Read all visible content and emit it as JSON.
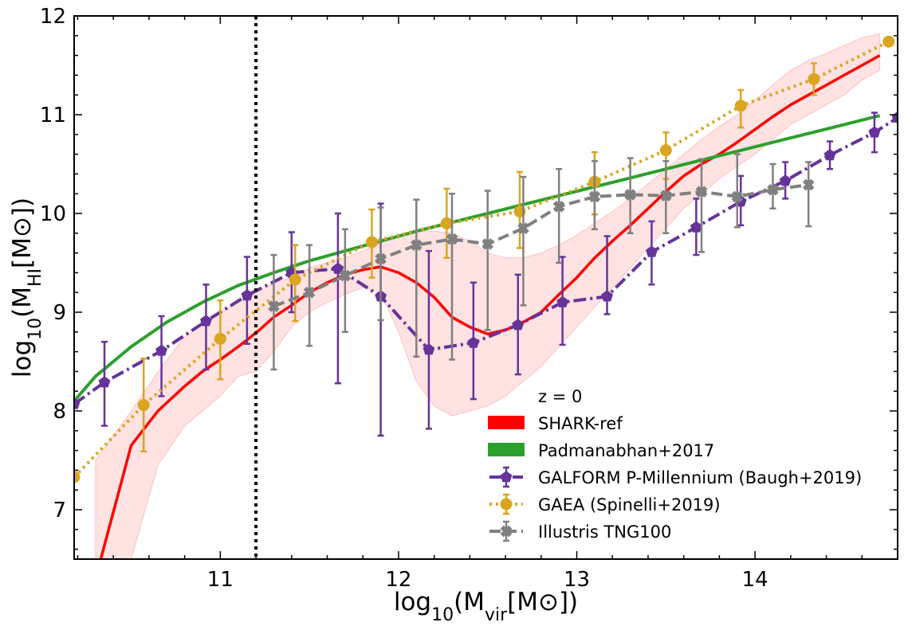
{
  "chart_data": {
    "type": "line",
    "xlabel": {
      "pre": "log",
      "sub": "10",
      "mid": "(M",
      "sub2": "vir",
      "post": "[M",
      "sun": "⊙",
      "end": "])"
    },
    "ylabel": {
      "pre": "log",
      "sub": "10",
      "mid": "(M",
      "sub2": "HI",
      "post": "[M",
      "sun": "⊙",
      "end": "])"
    },
    "xlim": [
      10.18,
      14.8
    ],
    "ylim": [
      6.5,
      12
    ],
    "xticks": [
      11,
      12,
      13,
      14
    ],
    "yticks": [
      7,
      8,
      9,
      10,
      11,
      12
    ],
    "vline_x": 11.2,
    "legend_title": "z = 0",
    "legend_position": "bottom-right",
    "series": [
      {
        "name": "SHARK-ref",
        "kind": "line_band",
        "color": "#ff0000",
        "x": [
          10.3,
          10.5,
          10.65,
          10.8,
          10.9,
          11.0,
          11.1,
          11.15,
          11.22,
          11.3,
          11.4,
          11.5,
          11.6,
          11.7,
          11.8,
          11.9,
          12.0,
          12.1,
          12.2,
          12.3,
          12.4,
          12.5,
          12.6,
          12.7,
          12.8,
          12.9,
          13.0,
          13.1,
          13.2,
          13.3,
          13.4,
          13.5,
          13.6,
          13.7,
          13.8,
          13.9,
          14.0,
          14.1,
          14.2,
          14.3,
          14.4,
          14.5,
          14.6,
          14.7
        ],
        "y": [
          6.3,
          7.65,
          8.0,
          8.25,
          8.4,
          8.52,
          8.65,
          8.72,
          8.82,
          8.95,
          9.07,
          9.2,
          9.3,
          9.38,
          9.43,
          9.46,
          9.4,
          9.3,
          9.15,
          8.95,
          8.85,
          8.78,
          8.82,
          8.9,
          9.0,
          9.18,
          9.35,
          9.55,
          9.72,
          9.88,
          10.05,
          10.22,
          10.38,
          10.5,
          10.6,
          10.72,
          10.85,
          10.98,
          11.1,
          11.2,
          11.3,
          11.4,
          11.5,
          11.6
        ],
        "band_x": [
          10.3,
          10.5,
          10.65,
          10.8,
          10.9,
          11.0,
          11.1,
          11.2,
          11.3,
          11.4,
          11.5,
          11.6,
          11.7,
          11.8,
          11.9,
          12.0,
          12.1,
          12.2,
          12.3,
          12.4,
          12.5,
          12.6,
          12.7,
          12.8,
          12.9,
          13.0,
          13.1,
          13.2,
          13.3,
          13.4,
          13.5,
          13.6,
          13.7,
          13.8,
          13.9,
          14.0,
          14.1,
          14.2,
          14.3,
          14.4,
          14.5,
          14.6,
          14.7
        ],
        "band_low": [
          6.5,
          6.5,
          7.45,
          7.85,
          8.0,
          8.15,
          8.35,
          8.4,
          8.6,
          8.85,
          9.0,
          9.1,
          9.18,
          9.25,
          9.2,
          8.8,
          8.3,
          8.05,
          7.95,
          8.0,
          8.05,
          8.15,
          8.3,
          8.45,
          8.65,
          8.85,
          9.05,
          9.25,
          9.45,
          9.65,
          9.85,
          10.05,
          10.2,
          10.35,
          10.48,
          10.6,
          10.75,
          10.9,
          11.0,
          11.1,
          11.2,
          11.35,
          11.45
        ],
        "band_high": [
          7.5,
          8.0,
          8.4,
          8.75,
          8.9,
          9.0,
          9.1,
          9.2,
          9.3,
          9.35,
          9.45,
          9.5,
          9.55,
          9.62,
          9.7,
          9.78,
          9.82,
          9.82,
          9.8,
          9.72,
          9.6,
          9.55,
          9.55,
          9.6,
          9.68,
          9.78,
          9.9,
          10.02,
          10.15,
          10.3,
          10.45,
          10.6,
          10.75,
          10.88,
          11.0,
          11.15,
          11.3,
          11.45,
          11.55,
          11.62,
          11.7,
          11.78,
          11.82
        ]
      },
      {
        "name": "Padmanabhan+2017",
        "kind": "line",
        "color": "#2ca02c",
        "x": [
          10.18,
          10.3,
          10.5,
          10.7,
          10.9,
          11.1,
          11.3,
          11.5,
          11.7,
          11.9,
          12.1,
          12.3,
          12.5,
          12.7,
          12.9,
          13.1,
          13.3,
          13.5,
          13.7,
          13.9,
          14.1,
          14.3,
          14.5,
          14.7
        ],
        "y": [
          8.1,
          8.35,
          8.65,
          8.9,
          9.1,
          9.27,
          9.4,
          9.52,
          9.62,
          9.72,
          9.82,
          9.91,
          10.0,
          10.09,
          10.18,
          10.27,
          10.36,
          10.45,
          10.54,
          10.63,
          10.72,
          10.81,
          10.9,
          10.99
        ]
      },
      {
        "name": "GALFORM P-Millennium (Baugh+2019)",
        "kind": "errorbar_line",
        "color": "#663399",
        "marker": "pentagon",
        "x": [
          10.18,
          10.35,
          10.67,
          10.92,
          11.15,
          11.4,
          11.66,
          11.9,
          12.17,
          12.42,
          12.67,
          12.92,
          13.17,
          13.42,
          13.67,
          13.92,
          14.17,
          14.42,
          14.67,
          14.8
        ],
        "y": [
          8.07,
          8.29,
          8.61,
          8.91,
          9.17,
          9.4,
          9.44,
          9.16,
          8.62,
          8.69,
          8.87,
          9.1,
          9.16,
          9.61,
          9.86,
          10.12,
          10.33,
          10.59,
          10.82,
          10.97
        ],
        "yerr_low": [
          null,
          7.85,
          8.15,
          8.42,
          8.68,
          9.0,
          8.28,
          7.75,
          7.82,
          8.12,
          8.37,
          8.67,
          8.98,
          9.28,
          9.58,
          9.88,
          10.15,
          10.45,
          10.62,
          null
        ],
        "yerr_high": [
          null,
          8.7,
          8.96,
          9.28,
          9.56,
          9.81,
          10.0,
          10.1,
          9.62,
          9.3,
          9.38,
          9.56,
          9.77,
          9.92,
          10.15,
          10.38,
          10.52,
          10.73,
          11.02,
          null
        ]
      },
      {
        "name": "GAEA (Spinelli+2019)",
        "kind": "errorbar_line",
        "color": "#daa520",
        "marker": "circle",
        "x": [
          10.18,
          10.57,
          11.0,
          11.42,
          11.85,
          12.27,
          12.68,
          13.1,
          13.5,
          13.92,
          14.33,
          14.75
        ],
        "y": [
          7.33,
          8.06,
          8.73,
          9.33,
          9.71,
          9.9,
          10.02,
          10.32,
          10.64,
          11.09,
          11.36,
          11.74
        ],
        "yerr_low": [
          null,
          7.59,
          8.32,
          8.91,
          9.35,
          9.55,
          9.65,
          9.99,
          10.35,
          10.87,
          11.2,
          null
        ],
        "yerr_high": [
          null,
          8.53,
          9.12,
          9.68,
          10.04,
          10.25,
          10.42,
          10.62,
          10.82,
          11.25,
          11.52,
          null
        ]
      },
      {
        "name": "Illustris TNG100",
        "kind": "errorbar_line",
        "color": "#808080",
        "marker": "cross",
        "x": [
          11.3,
          11.5,
          11.7,
          11.9,
          12.1,
          12.3,
          12.5,
          12.7,
          12.9,
          13.1,
          13.3,
          13.5,
          13.7,
          13.9,
          14.1,
          14.3
        ],
        "y": [
          9.06,
          9.2,
          9.37,
          9.54,
          9.68,
          9.74,
          9.69,
          9.85,
          10.07,
          10.17,
          10.19,
          10.18,
          10.22,
          10.17,
          10.24,
          10.29
        ],
        "yerr_low": [
          8.42,
          8.66,
          8.8,
          8.92,
          8.55,
          8.52,
          8.82,
          9.07,
          9.5,
          9.84,
          9.8,
          9.8,
          9.61,
          9.86,
          10.05,
          9.87
        ],
        "yerr_high": [
          9.58,
          9.68,
          9.84,
          10.06,
          10.14,
          10.2,
          10.23,
          10.37,
          10.45,
          10.53,
          10.56,
          10.53,
          10.55,
          10.6,
          10.5,
          10.52
        ]
      }
    ]
  }
}
